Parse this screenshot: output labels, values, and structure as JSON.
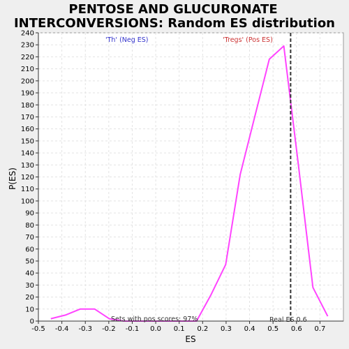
{
  "chart_data": {
    "type": "line",
    "title_lines": [
      "PENTOSE AND GLUCURONATE",
      "INTERCONVERSIONS: Random ES distribution"
    ],
    "xlabel": "ES",
    "ylabel": "P(ES)",
    "xlim": [
      -0.5,
      0.8
    ],
    "ylim": [
      0,
      240
    ],
    "x_ticks": [
      -0.5,
      -0.4,
      -0.3,
      -0.2,
      -0.1,
      0,
      0.1,
      0.2,
      0.3,
      0.4,
      0.5,
      0.6,
      0.7
    ],
    "x_tick_labels": [
      "-0.5",
      "-0.4",
      "-0.3",
      "-0.2",
      "-0.1",
      "0.0",
      "0.1",
      "0.2",
      "0.3",
      "0.4",
      "0.5",
      "0.6",
      "0.7"
    ],
    "y_ticks": [
      0,
      10,
      20,
      30,
      40,
      50,
      60,
      70,
      80,
      90,
      100,
      110,
      120,
      130,
      140,
      150,
      160,
      170,
      180,
      190,
      200,
      210,
      220,
      230,
      240
    ],
    "grid": true,
    "series": [
      {
        "color": "#ff44ff",
        "x": [
          -0.447,
          -0.385,
          -0.322,
          -0.26,
          -0.198,
          -0.136,
          -0.074,
          -0.012,
          0.05,
          0.112,
          0.174,
          0.236,
          0.298,
          0.36,
          0.422,
          0.484,
          0.546,
          0.608,
          0.67,
          0.733
        ],
        "y": [
          2,
          5,
          10,
          10,
          2,
          0,
          0,
          0,
          0,
          0,
          0,
          22,
          47,
          122,
          170,
          218,
          229,
          130,
          28,
          4
        ]
      }
    ],
    "vline": {
      "x": 0.575,
      "color": "#333333",
      "style": "dashed"
    },
    "annotations": {
      "neg_label": "'Th' (Neg ES)",
      "pos_label": "'Tregs' (Pos ES)",
      "pos_scores": "Sets with pos scores: 97%",
      "real_es": "Real ES 0.6"
    },
    "colors": {
      "neg": "#3333cc",
      "pos": "#cc3333",
      "line": "#ff44ff"
    }
  }
}
